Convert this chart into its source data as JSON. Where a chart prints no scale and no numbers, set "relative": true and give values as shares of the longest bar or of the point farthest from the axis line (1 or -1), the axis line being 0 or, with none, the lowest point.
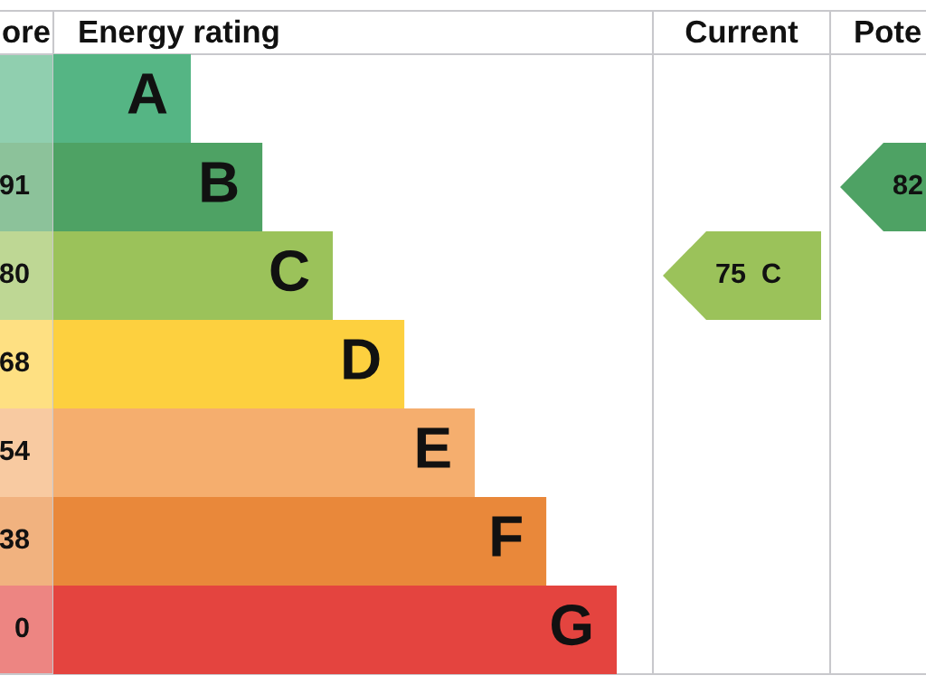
{
  "chart_data": {
    "type": "bar",
    "orientation": "horizontal",
    "relative": true,
    "categories": [
      "A",
      "B",
      "C",
      "D",
      "E",
      "F",
      "G"
    ],
    "values": [
      0.244,
      0.371,
      0.496,
      0.623,
      0.748,
      0.875,
      1
    ],
    "colors": [
      "#55b584",
      "#4ea264",
      "#9bc25a",
      "#fdd03f",
      "#f5ae6e",
      "#e9883a",
      "#e4443f"
    ],
    "annotations": [
      "ore",
      "Energy rating",
      "Current",
      "Pote",
      "91",
      "80",
      "68",
      "54",
      "38",
      "0",
      "75  C",
      "82"
    ]
  }
}
